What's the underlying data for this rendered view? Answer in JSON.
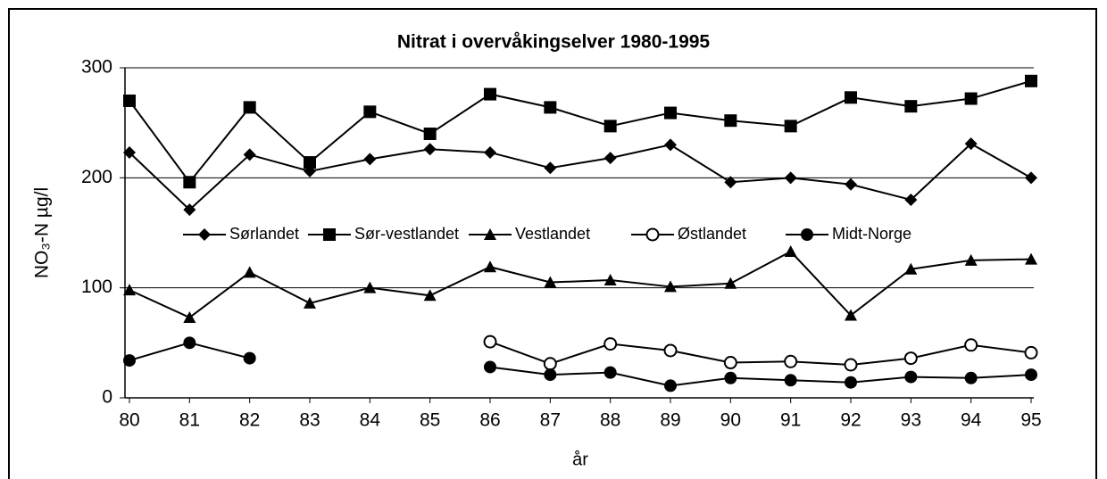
{
  "chart_data": {
    "type": "line",
    "title": "Nitrat i overvåkingselver 1980-1995",
    "x_label": "år",
    "y_label": "NO₃-N µg/l",
    "categories": [
      "80",
      "81",
      "82",
      "83",
      "84",
      "85",
      "86",
      "87",
      "88",
      "89",
      "90",
      "91",
      "92",
      "93",
      "94",
      "95"
    ],
    "series": [
      {
        "name": "Sørlandet",
        "color": "#000000",
        "marker": "diamond",
        "values": [
          223,
          171,
          221,
          206,
          217,
          226,
          223,
          209,
          218,
          230,
          196,
          200,
          194,
          180,
          231,
          200
        ]
      },
      {
        "name": "Sør-vestlandet",
        "color": "#000000",
        "marker": "square",
        "values": [
          270,
          196,
          264,
          214,
          260,
          240,
          276,
          264,
          247,
          259,
          252,
          247,
          273,
          265,
          272,
          288
        ]
      },
      {
        "name": "Vestlandet",
        "color": "#000000",
        "marker": "triangle",
        "values": [
          98,
          73,
          114,
          86,
          100,
          93,
          119,
          105,
          107,
          101,
          104,
          133,
          75,
          117,
          125,
          126
        ]
      },
      {
        "name": "Østlandet",
        "color": "#000000",
        "marker": "open-circle",
        "values": [
          null,
          null,
          null,
          null,
          null,
          null,
          51,
          31,
          49,
          43,
          32,
          33,
          30,
          36,
          48,
          41
        ]
      },
      {
        "name": "Midt-Norge",
        "color": "#000000",
        "marker": "circle",
        "values": [
          34,
          50,
          36,
          null,
          null,
          null,
          28,
          21,
          23,
          11,
          18,
          16,
          14,
          19,
          18,
          21
        ]
      }
    ],
    "ylim": [
      0,
      300
    ],
    "yticks": [
      0,
      100,
      200,
      300
    ],
    "grid": true,
    "legend": "center"
  }
}
